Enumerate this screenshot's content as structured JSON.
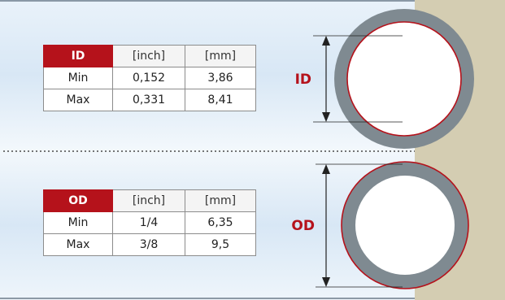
{
  "id_section": {
    "label": "ID",
    "table": {
      "headers": [
        "ID",
        "[inch]",
        "[mm]"
      ],
      "rows": [
        {
          "name": "Min",
          "inch": "0,152",
          "mm": "3,86"
        },
        {
          "name": "Max",
          "inch": "0,331",
          "mm": "8,41"
        }
      ]
    }
  },
  "od_section": {
    "label": "OD",
    "table": {
      "headers": [
        "OD",
        "[inch]",
        "[mm]"
      ],
      "rows": [
        {
          "name": "Min",
          "inch": "1/4",
          "mm": "6,35"
        },
        {
          "name": "Max",
          "inch": "3/8",
          "mm": "9,5"
        }
      ]
    }
  },
  "colors": {
    "accent_red": "#b5121b",
    "tube_gray": "#7f8a91",
    "wall_beige": "#d4cdb2",
    "background_blue": "#dbe9f6"
  }
}
